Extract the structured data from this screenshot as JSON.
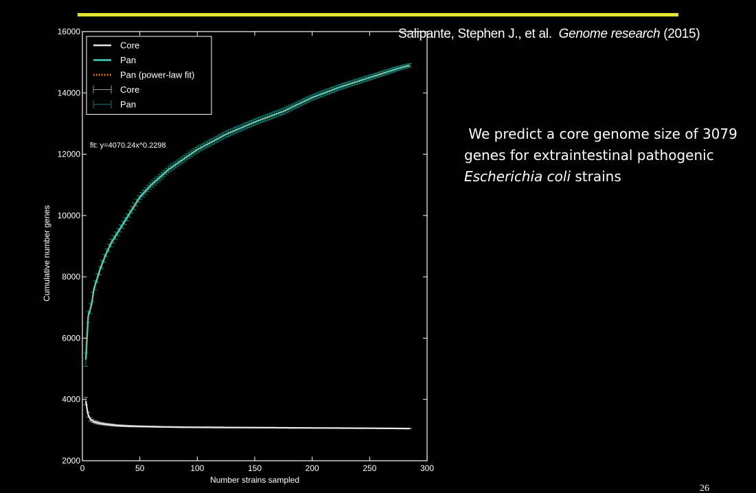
{
  "slide": {
    "citation": {
      "authors": "Salipante, Stephen J., et al.",
      "journal": "Genome research",
      "year": "(2015)"
    },
    "prediction": {
      "part1": "We predict a core genome size of 3079 genes for extraintestinal pathogenic",
      "species": "Escherichia coli",
      "part2": "strains"
    },
    "slide_number": "26",
    "colors": {
      "accent_rule": "#e4e432",
      "background": "#000000",
      "core": "#e8e8e8",
      "pan": "#3fd6c8",
      "pan_errorbar": "#0f7d76",
      "fit": "#ff8a2a"
    }
  },
  "chart_data": {
    "type": "line",
    "xlabel": "Number strains sampled",
    "ylabel": "Cumulative number genes",
    "xlim": [
      0,
      300
    ],
    "ylim": [
      2000,
      16000
    ],
    "xticks": [
      0,
      50,
      100,
      150,
      200,
      250,
      300
    ],
    "yticks": [
      2000,
      4000,
      6000,
      8000,
      10000,
      12000,
      14000,
      16000
    ],
    "grid": false,
    "legend_position": "top-left",
    "annotation": "fit: y=4070.24x^0.2298",
    "legend": [
      {
        "label": "Core",
        "kind": "line",
        "series": "core"
      },
      {
        "label": "Pan",
        "kind": "line",
        "series": "pan"
      },
      {
        "label": "Pan (power-law fit)",
        "kind": "dotted",
        "series": "fit"
      },
      {
        "label": "Core",
        "kind": "errorbar",
        "series": "core"
      },
      {
        "label": "Pan",
        "kind": "errorbar",
        "series": "pan"
      }
    ],
    "series": [
      {
        "name": "Pan",
        "x": [
          3,
          5,
          8,
          10,
          15,
          20,
          25,
          30,
          40,
          50,
          60,
          75,
          100,
          125,
          150,
          175,
          200,
          225,
          250,
          275,
          285
        ],
        "y": [
          5300,
          6700,
          7100,
          7600,
          8200,
          8700,
          9100,
          9400,
          10000,
          10600,
          11000,
          11500,
          12150,
          12650,
          13050,
          13400,
          13850,
          14200,
          14500,
          14800,
          14900
        ],
        "error": [
          220,
          180,
          160,
          150,
          140,
          130,
          125,
          120,
          115,
          110,
          110,
          105,
          100,
          100,
          95,
          95,
          90,
          85,
          80,
          70,
          60
        ]
      },
      {
        "name": "Pan (power-law fit)",
        "x": [
          3,
          5,
          8,
          10,
          15,
          20,
          25,
          30,
          40,
          50,
          60,
          75,
          100,
          125,
          150,
          175,
          200,
          225,
          250,
          275,
          285
        ],
        "y": [
          5300,
          6700,
          7100,
          7600,
          8200,
          8700,
          9100,
          9400,
          10000,
          10600,
          11000,
          11500,
          12150,
          12650,
          13050,
          13400,
          13850,
          14200,
          14500,
          14800,
          14900
        ]
      },
      {
        "name": "Core",
        "x": [
          3,
          4,
          5,
          7,
          10,
          15,
          20,
          30,
          40,
          50,
          75,
          100,
          150,
          200,
          250,
          285
        ],
        "y": [
          3950,
          3700,
          3500,
          3350,
          3270,
          3220,
          3190,
          3150,
          3130,
          3120,
          3100,
          3090,
          3080,
          3070,
          3060,
          3050
        ],
        "error": [
          120,
          100,
          80,
          60,
          50,
          40,
          35,
          30,
          25,
          20,
          15,
          15,
          12,
          10,
          10,
          8
        ]
      }
    ]
  }
}
